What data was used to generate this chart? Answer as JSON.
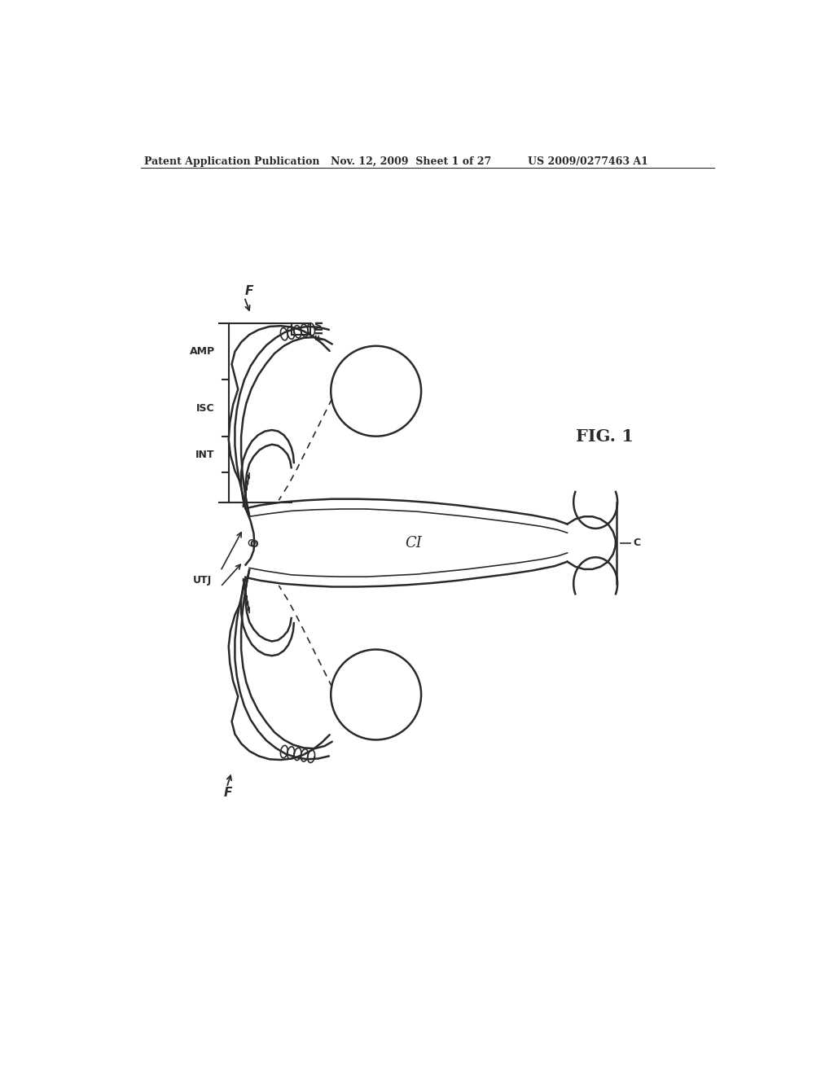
{
  "bg_color": "#ffffff",
  "line_color": "#2a2a2a",
  "header_left": "Patent Application Publication",
  "header_mid": "Nov. 12, 2009  Sheet 1 of 27",
  "header_right": "US 2009/0277463 A1",
  "title": "FIG. 1",
  "lw_main": 1.8,
  "lw_thin": 1.2,
  "lw_thick": 2.2
}
